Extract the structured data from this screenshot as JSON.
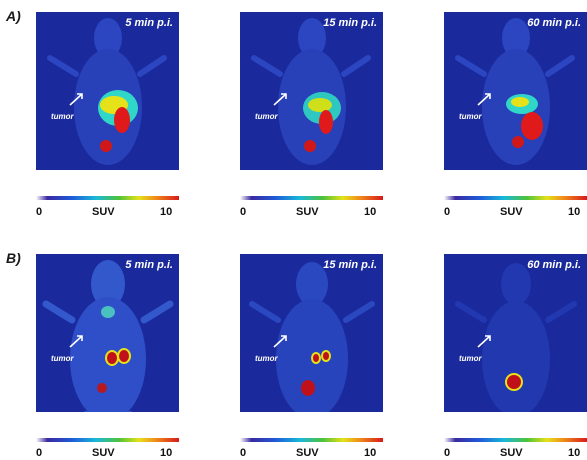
{
  "rows": [
    {
      "label": "A)",
      "panels": [
        {
          "time": "5 min p.i.",
          "tumor": "tumor"
        },
        {
          "time": "15 min p.i.",
          "tumor": "tumor"
        },
        {
          "time": "60 min p.i.",
          "tumor": "tumor"
        }
      ]
    },
    {
      "label": "B)",
      "panels": [
        {
          "time": "5 min p.i.",
          "tumor": "tumor"
        },
        {
          "time": "15 min p.i.",
          "tumor": "tumor"
        },
        {
          "time": "60 min p.i.",
          "tumor": "tumor"
        }
      ]
    }
  ],
  "colorbar": {
    "min": "0",
    "label": "SUV",
    "max": "10"
  },
  "colors": {
    "background": "#1a2a9c",
    "body": "#2f4fc8",
    "hot": "#c0101a"
  }
}
